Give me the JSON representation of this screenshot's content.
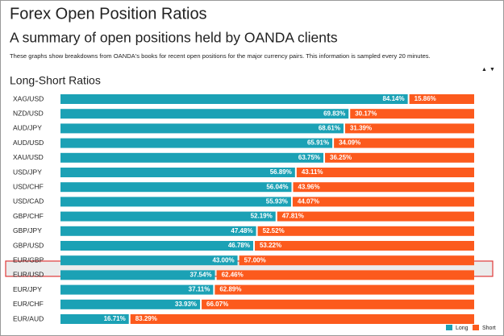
{
  "title": "Forex Open Position Ratios",
  "subtitle": "A summary of open positions held by OANDA clients",
  "description": "These graphs show breakdowns from OANDA's books for recent open positions for the major currency pairs. This information is sampled every 20 minutes.",
  "chart_data": {
    "type": "stacked-bar-horizontal",
    "title": "Long-Short Ratios",
    "categories": [
      "XAG/USD",
      "NZD/USD",
      "AUD/JPY",
      "AUD/USD",
      "XAU/USD",
      "USD/JPY",
      "USD/CHF",
      "USD/CAD",
      "GBP/CHF",
      "GBP/JPY",
      "GBP/USD",
      "EUR/GBP",
      "EUR/USD",
      "EUR/JPY",
      "EUR/CHF",
      "EUR/AUD"
    ],
    "xlim": [
      0,
      100
    ],
    "series": [
      {
        "name": "Long",
        "color": "#1ba1b5",
        "values": [
          84.14,
          69.83,
          68.61,
          65.91,
          63.75,
          56.89,
          56.04,
          55.93,
          52.19,
          47.48,
          46.78,
          43.0,
          37.54,
          37.11,
          33.93,
          16.71
        ],
        "value_labels": [
          "84.14%",
          "69.83%",
          "68.61%",
          "65.91%",
          "63.75%",
          "56.89%",
          "56.04%",
          "55.93%",
          "52.19%",
          "47.48%",
          "46.78%",
          "43.00%",
          "37.54%",
          "37.11%",
          "33.93%",
          "16.71%"
        ]
      },
      {
        "name": "Short",
        "color": "#fc5a1d",
        "values": [
          15.86,
          30.17,
          31.39,
          34.09,
          36.25,
          43.11,
          43.96,
          44.07,
          47.81,
          52.52,
          53.22,
          57.0,
          62.46,
          62.89,
          66.07,
          83.29
        ],
        "value_labels": [
          "15.86%",
          "30.17%",
          "31.39%",
          "34.09%",
          "36.25%",
          "43.11%",
          "43.96%",
          "44.07%",
          "47.81%",
          "52.52%",
          "53.22%",
          "57.00%",
          "62.46%",
          "62.89%",
          "66.07%",
          "83.29%"
        ]
      }
    ]
  }
}
